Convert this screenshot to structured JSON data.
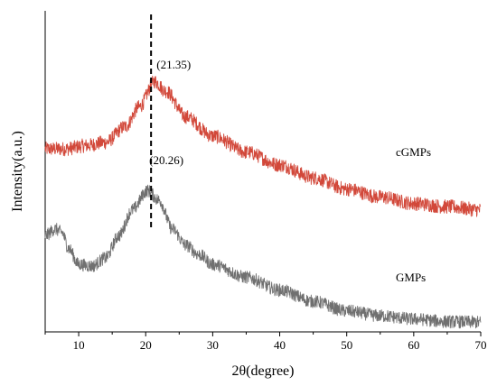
{
  "chart_data": {
    "type": "line",
    "title": "",
    "xlabel": "2θ(degree)",
    "ylabel": "Intensity(a.u.)",
    "xlim": [
      5,
      70
    ],
    "ylim": [
      0,
      100
    ],
    "x_ticks": [
      10,
      20,
      30,
      40,
      50,
      60,
      70
    ],
    "x_tick_labels": [
      "10",
      "20",
      "30",
      "40",
      "50",
      "60",
      "70"
    ],
    "y_ticks_shown": false,
    "grid": false,
    "series": [
      {
        "name": "cGMPs",
        "color": "#d2483a",
        "points": [
          [
            5,
            57
          ],
          [
            8,
            57
          ],
          [
            11,
            58
          ],
          [
            14,
            59
          ],
          [
            17,
            64
          ],
          [
            19,
            70
          ],
          [
            21.35,
            78
          ],
          [
            23,
            75
          ],
          [
            26,
            67
          ],
          [
            30,
            61
          ],
          [
            35,
            56
          ],
          [
            40,
            52
          ],
          [
            45,
            48
          ],
          [
            50,
            44.5
          ],
          [
            55,
            42
          ],
          [
            60,
            40
          ],
          [
            65,
            39
          ],
          [
            70,
            38
          ]
        ]
      },
      {
        "name": "GMPs",
        "color": "#707070",
        "points": [
          [
            5,
            30
          ],
          [
            6.5,
            32
          ],
          [
            7.5,
            31
          ],
          [
            8.5,
            26
          ],
          [
            10,
            21
          ],
          [
            12,
            20.5
          ],
          [
            14,
            23
          ],
          [
            16,
            30
          ],
          [
            18,
            38
          ],
          [
            20.26,
            44
          ],
          [
            22,
            41
          ],
          [
            24,
            32
          ],
          [
            26,
            27
          ],
          [
            28,
            24
          ],
          [
            30,
            21
          ],
          [
            35,
            17
          ],
          [
            40,
            13
          ],
          [
            45,
            9.5
          ],
          [
            50,
            6.5
          ],
          [
            55,
            5
          ],
          [
            60,
            4
          ],
          [
            65,
            3.2
          ],
          [
            70,
            3
          ]
        ]
      }
    ],
    "series_labels": [
      "cGMPs",
      "GMPs"
    ],
    "annotations": [
      {
        "text": "(21.35)",
        "x": 21.35
      },
      {
        "text": "(20.26)",
        "x": 20.26
      }
    ],
    "reference_line": {
      "x": 20.8,
      "style": "dashed",
      "color": "#000000"
    }
  }
}
